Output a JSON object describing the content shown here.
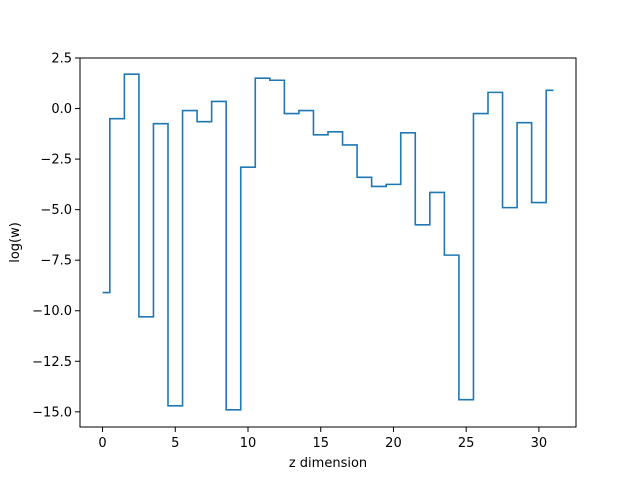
{
  "chart_data": {
    "type": "line",
    "drawstyle": "steps-mid",
    "xlabel": "z dimension",
    "ylabel": "log(w)",
    "xlim": [
      -1.55,
      32.55
    ],
    "ylim": [
      -15.75,
      2.5
    ],
    "xticks": [
      0,
      5,
      10,
      15,
      20,
      25,
      30
    ],
    "yticks": [
      2.5,
      0.0,
      -2.5,
      -5.0,
      -7.5,
      -10.0,
      -12.5,
      -15.0
    ],
    "ytick_labels": [
      "2.5",
      "0.0",
      "−2.5",
      "−5.0",
      "−7.5",
      "−10.0",
      "−12.5",
      "−15.0"
    ],
    "grid": false,
    "series": [
      {
        "color": "#1f77b4",
        "x": [
          0,
          1,
          2,
          3,
          4,
          5,
          6,
          7,
          8,
          9,
          10,
          11,
          12,
          13,
          14,
          15,
          16,
          17,
          18,
          19,
          20,
          21,
          22,
          23,
          24,
          25,
          26,
          27,
          28,
          29,
          30,
          31
        ],
        "values": [
          -9.1,
          -0.5,
          1.7,
          -10.3,
          -0.75,
          -14.7,
          -0.1,
          -0.65,
          0.35,
          -14.9,
          -2.9,
          1.5,
          1.4,
          -0.25,
          -0.1,
          -1.3,
          -1.15,
          -1.8,
          -3.4,
          -3.85,
          -3.75,
          -1.2,
          -5.75,
          -4.15,
          -7.25,
          -14.4,
          -0.25,
          0.8,
          -4.9,
          -0.7,
          -4.65,
          0.9
        ]
      }
    ]
  }
}
